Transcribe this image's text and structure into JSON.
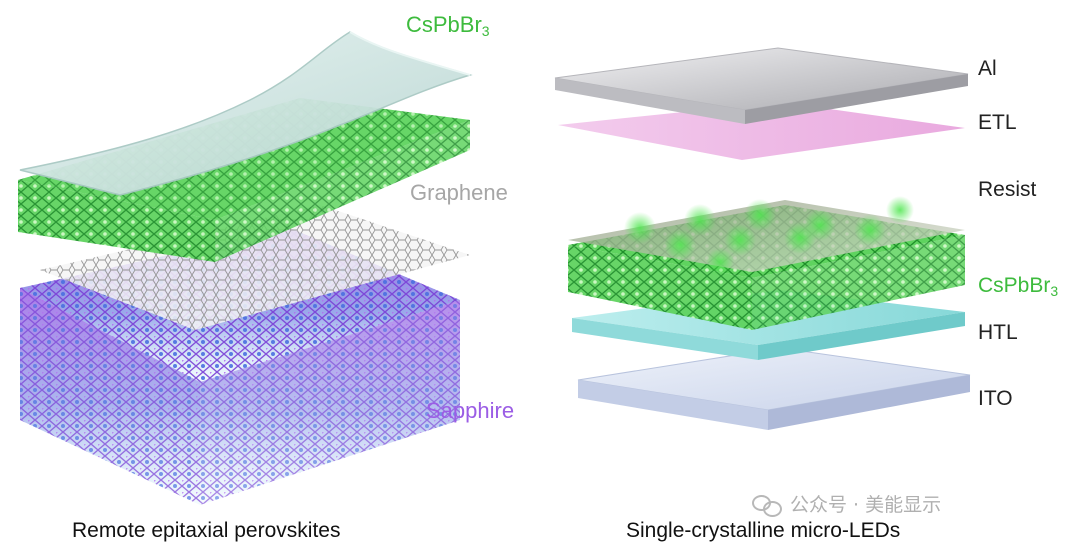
{
  "left_panel": {
    "caption": "Remote epitaxial perovskites",
    "labels": {
      "cspbbr": {
        "text": "CsPbBr",
        "sub": "3",
        "color": "#3dbb3d"
      },
      "graphene": {
        "text": "Graphene",
        "color": "#a6a6a6"
      },
      "sapphire": {
        "text": "Sapphire",
        "color": "#9b5de5"
      }
    }
  },
  "right_panel": {
    "caption": "Single-crystalline micro-LEDs",
    "layers": [
      {
        "key": "al",
        "text": "Al",
        "sub": "",
        "color": "#222222"
      },
      {
        "key": "etl",
        "text": "ETL",
        "sub": "",
        "color": "#222222"
      },
      {
        "key": "resist",
        "text": "Resist",
        "sub": "",
        "color": "#222222"
      },
      {
        "key": "cspbbr",
        "text": "CsPbBr",
        "sub": "3",
        "color": "#3dbb3d"
      },
      {
        "key": "htl",
        "text": "HTL",
        "sub": "",
        "color": "#222222"
      },
      {
        "key": "ito",
        "text": "ITO",
        "sub": "",
        "color": "#222222"
      }
    ]
  },
  "watermark": {
    "text": "公众号 · 美能显示"
  },
  "colors": {
    "green": "#3dbb3d",
    "purple": "#9b5de5",
    "film": "#cfe6e2",
    "etl": "#e8a6e0",
    "htl": "#9fe3e3",
    "ito": "#d7e0f2",
    "al": "#c9c9cd"
  }
}
